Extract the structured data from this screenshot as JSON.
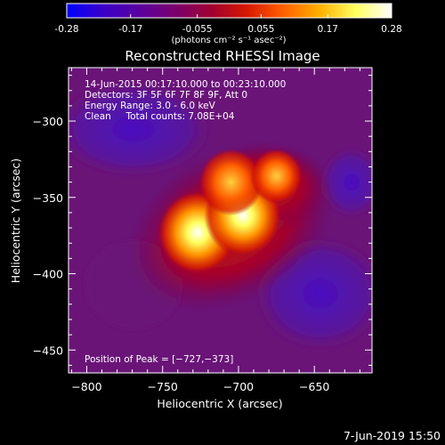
{
  "colorbar": {
    "ticks": [
      "-0.28",
      "-0.17",
      "-0.055",
      "0.055",
      "0.17",
      "0.28"
    ],
    "tick_values": [
      -0.28,
      -0.17,
      -0.055,
      0.055,
      0.17,
      0.28
    ],
    "range": [
      -0.28,
      0.28
    ],
    "unit_label": "(photons cm⁻² s⁻¹ asec⁻²)",
    "colors": [
      "#0000ff",
      "#3a00c8",
      "#5a00a0",
      "#7a006e",
      "#a00030",
      "#d81800",
      "#ff6000",
      "#ffb000",
      "#ffff60",
      "#ffffff"
    ]
  },
  "chart_data": {
    "type": "heatmap",
    "title": "Reconstructed RHESSI Image",
    "xlabel": "Heliocentric X (arcsec)",
    "ylabel": "Heliocentric Y (arcsec)",
    "xlim": [
      -812,
      -612
    ],
    "ylim": [
      -465,
      -265
    ],
    "x_ticks": [
      -800,
      -750,
      -700,
      -650
    ],
    "y_ticks": [
      -300,
      -350,
      -400,
      -450
    ],
    "x_tick_labels": [
      "−800",
      "−750",
      "−700",
      "−650"
    ],
    "y_tick_labels": [
      "−300",
      "−350",
      "−400",
      "−450"
    ],
    "info_lines": [
      "14-Jun-2015 00:17:10.000 to 00:23:10.000",
      "Detectors: 3F 5F 6F 7F 8F 9F, Att 0",
      "Energy Range: 3.0 - 6.0 keV",
      "Clean     Total counts: 7.08E+04"
    ],
    "peak_label": "Position of Peak = [−727,−373]",
    "peak": [
      -727,
      -373
    ],
    "sources": [
      {
        "x": -727,
        "y": -373,
        "peak": 0.28
      },
      {
        "x": -697,
        "y": -362,
        "peak": 0.27
      },
      {
        "x": -705,
        "y": -340,
        "peak": 0.2
      },
      {
        "x": -675,
        "y": -336,
        "peak": 0.14
      }
    ]
  },
  "timestamp": "7-Jun-2019 15:50"
}
